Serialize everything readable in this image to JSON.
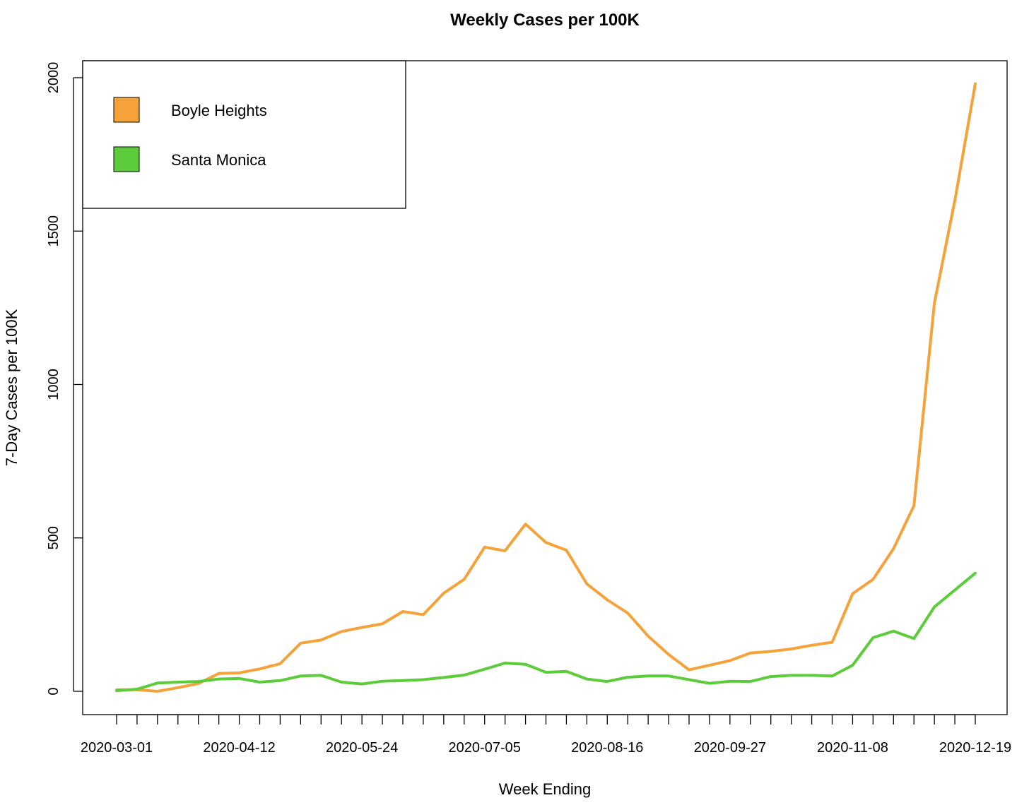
{
  "chart_data": {
    "type": "line",
    "title": "Weekly Cases per 100K",
    "xlabel": "Week Ending",
    "ylabel": "7-Day Cases per 100K",
    "ylim": [
      0,
      2000
    ],
    "yticks": [
      "0",
      "500",
      "1000",
      "1500",
      "2000"
    ],
    "x_tick_labels": [
      "2020-03-01",
      "2020-04-12",
      "2020-05-24",
      "2020-07-05",
      "2020-08-16",
      "2020-09-27",
      "2020-11-08",
      "2020-12-19"
    ],
    "categories": [
      "2020-03-01",
      "2020-03-08",
      "2020-03-15",
      "2020-03-22",
      "2020-03-29",
      "2020-04-05",
      "2020-04-12",
      "2020-04-19",
      "2020-04-26",
      "2020-05-03",
      "2020-05-10",
      "2020-05-17",
      "2020-05-24",
      "2020-05-31",
      "2020-06-07",
      "2020-06-14",
      "2020-06-21",
      "2020-06-28",
      "2020-07-05",
      "2020-07-12",
      "2020-07-19",
      "2020-07-26",
      "2020-08-02",
      "2020-08-09",
      "2020-08-16",
      "2020-08-23",
      "2020-08-30",
      "2020-09-06",
      "2020-09-13",
      "2020-09-20",
      "2020-09-27",
      "2020-10-04",
      "2020-10-11",
      "2020-10-18",
      "2020-10-25",
      "2020-11-01",
      "2020-11-08",
      "2020-11-15",
      "2020-11-22",
      "2020-11-29",
      "2020-12-06",
      "2020-12-13",
      "2020-12-19"
    ],
    "grid": false,
    "legend_position": "top-left",
    "series": [
      {
        "name": "Boyle Heights",
        "color": "#F5A23A",
        "values": [
          5,
          5,
          0,
          12,
          25,
          58,
          60,
          73,
          90,
          157,
          167,
          195,
          208,
          220,
          260,
          250,
          320,
          365,
          470,
          458,
          545,
          485,
          460,
          350,
          298,
          255,
          180,
          120,
          70,
          85,
          100,
          125,
          130,
          138,
          150,
          160,
          318,
          365,
          465,
          605,
          1265,
          1600,
          1980
        ]
      },
      {
        "name": "Santa Monica",
        "color": "#5CCC3A",
        "values": [
          2,
          7,
          27,
          30,
          32,
          40,
          42,
          30,
          35,
          50,
          52,
          30,
          24,
          33,
          35,
          38,
          45,
          53,
          72,
          92,
          88,
          62,
          65,
          40,
          32,
          46,
          50,
          50,
          38,
          26,
          33,
          32,
          48,
          52,
          52,
          50,
          85,
          175,
          196,
          172,
          275,
          330,
          385
        ]
      }
    ]
  }
}
